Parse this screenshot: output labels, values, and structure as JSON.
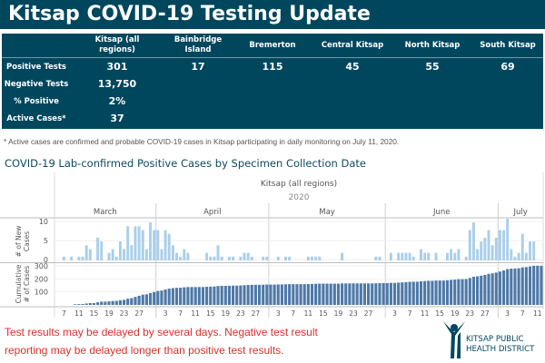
{
  "header": {
    "title": "Kitsap COVID-19 Testing Update"
  },
  "stats_table": {
    "columns": [
      "",
      "Kitsap (all regions)",
      "Bainbridge Island",
      "Bremerton",
      "Central Kitsap",
      "North Kitsap",
      "South Kitsap"
    ],
    "rows": [
      {
        "label": "Positive Tests",
        "values": [
          "301",
          "17",
          "115",
          "45",
          "55",
          "69"
        ]
      },
      {
        "label": "Negative Tests",
        "values": [
          "13,750",
          "",
          "",
          "",
          "",
          ""
        ]
      },
      {
        "label": "% Positive",
        "values": [
          "2%",
          "",
          "",
          "",
          "",
          ""
        ]
      },
      {
        "label": "Active Cases*",
        "values": [
          "37",
          "",
          "",
          "",
          "",
          ""
        ]
      }
    ]
  },
  "footnote": "* Active cases are confirmed and probable COVID-19 cases in Kitsap participating in daily monitoring on July 11, 2020.",
  "note": {
    "line1": "Test results may be delayed by several days. Negative test result",
    "line2": "reporting may be delayed longer than positive test results."
  },
  "logo": {
    "line1": "KITSAP PUBLIC",
    "line2": "HEALTH DISTRICT"
  },
  "colors": {
    "brand": "#00475e",
    "new_cases_bar": "#a9cfea",
    "cumulative_bar": "#4e79a7",
    "warning_text": "#d9312b"
  },
  "chart_data": {
    "type": "bar",
    "title": "COVID-19 Lab-confirmed Positive Cases by Specimen Collection Date",
    "header_label": "Kitsap (all regions)",
    "year_label": "2020",
    "months": [
      "March",
      "April",
      "May",
      "June",
      "July"
    ],
    "x_start": "2020-03-05",
    "x_end": "2020-07-12",
    "x_tick_labels": {
      "March": [
        "7",
        "11",
        "15",
        "19",
        "23",
        "27"
      ],
      "April": [
        "3",
        "7",
        "11",
        "15",
        "19",
        "23",
        "27"
      ],
      "May": [
        "3",
        "7",
        "11",
        "15",
        "19",
        "23",
        "27"
      ],
      "June": [
        "3",
        "7",
        "11",
        "15",
        "19",
        "23",
        "27"
      ],
      "July": [
        "3",
        "7",
        "11"
      ]
    },
    "panels": [
      {
        "name": "new_cases",
        "ylabel": "# of New Cases",
        "yticks": [
          0,
          5,
          10
        ],
        "ylim": [
          0,
          11
        ],
        "series": [
          {
            "date": "2020-03-07",
            "value": 1
          },
          {
            "date": "2020-03-09",
            "value": 1
          },
          {
            "date": "2020-03-11",
            "value": 1
          },
          {
            "date": "2020-03-12",
            "value": 1
          },
          {
            "date": "2020-03-13",
            "value": 4
          },
          {
            "date": "2020-03-14",
            "value": 3
          },
          {
            "date": "2020-03-16",
            "value": 6
          },
          {
            "date": "2020-03-17",
            "value": 5
          },
          {
            "date": "2020-03-19",
            "value": 2
          },
          {
            "date": "2020-03-20",
            "value": 3
          },
          {
            "date": "2020-03-21",
            "value": 1
          },
          {
            "date": "2020-03-22",
            "value": 5
          },
          {
            "date": "2020-03-23",
            "value": 3
          },
          {
            "date": "2020-03-24",
            "value": 9
          },
          {
            "date": "2020-03-25",
            "value": 4
          },
          {
            "date": "2020-03-26",
            "value": 9
          },
          {
            "date": "2020-03-27",
            "value": 9
          },
          {
            "date": "2020-03-28",
            "value": 8
          },
          {
            "date": "2020-03-29",
            "value": 3
          },
          {
            "date": "2020-03-30",
            "value": 10
          },
          {
            "date": "2020-03-31",
            "value": 8
          },
          {
            "date": "2020-04-01",
            "value": 8
          },
          {
            "date": "2020-04-02",
            "value": 3
          },
          {
            "date": "2020-04-03",
            "value": 8
          },
          {
            "date": "2020-04-04",
            "value": 7
          },
          {
            "date": "2020-04-05",
            "value": 4
          },
          {
            "date": "2020-04-06",
            "value": 2
          },
          {
            "date": "2020-04-07",
            "value": 1
          },
          {
            "date": "2020-04-08",
            "value": 3
          },
          {
            "date": "2020-04-09",
            "value": 2
          },
          {
            "date": "2020-04-14",
            "value": 2
          },
          {
            "date": "2020-04-15",
            "value": 1
          },
          {
            "date": "2020-04-16",
            "value": 1
          },
          {
            "date": "2020-04-17",
            "value": 4
          },
          {
            "date": "2020-04-18",
            "value": 1
          },
          {
            "date": "2020-04-20",
            "value": 1
          },
          {
            "date": "2020-04-21",
            "value": 1
          },
          {
            "date": "2020-04-23",
            "value": 1
          },
          {
            "date": "2020-04-24",
            "value": 2
          },
          {
            "date": "2020-04-25",
            "value": 2
          },
          {
            "date": "2020-04-26",
            "value": 1
          },
          {
            "date": "2020-04-29",
            "value": 1
          },
          {
            "date": "2020-04-30",
            "value": 1
          },
          {
            "date": "2020-05-03",
            "value": 1
          },
          {
            "date": "2020-05-05",
            "value": 1
          },
          {
            "date": "2020-05-06",
            "value": 1
          },
          {
            "date": "2020-05-11",
            "value": 1
          },
          {
            "date": "2020-05-12",
            "value": 1
          },
          {
            "date": "2020-05-13",
            "value": 1
          },
          {
            "date": "2020-05-14",
            "value": 1
          },
          {
            "date": "2020-05-20",
            "value": 2
          },
          {
            "date": "2020-05-29",
            "value": 1
          },
          {
            "date": "2020-05-30",
            "value": 1
          },
          {
            "date": "2020-06-02",
            "value": 2
          },
          {
            "date": "2020-06-04",
            "value": 2
          },
          {
            "date": "2020-06-05",
            "value": 2
          },
          {
            "date": "2020-06-06",
            "value": 2
          },
          {
            "date": "2020-06-07",
            "value": 2
          },
          {
            "date": "2020-06-08",
            "value": 1
          },
          {
            "date": "2020-06-10",
            "value": 3
          },
          {
            "date": "2020-06-11",
            "value": 2
          },
          {
            "date": "2020-06-12",
            "value": 2
          },
          {
            "date": "2020-06-14",
            "value": 2
          },
          {
            "date": "2020-06-17",
            "value": 2
          },
          {
            "date": "2020-06-18",
            "value": 3
          },
          {
            "date": "2020-06-19",
            "value": 2
          },
          {
            "date": "2020-06-20",
            "value": 3
          },
          {
            "date": "2020-06-22",
            "value": 1
          },
          {
            "date": "2020-06-23",
            "value": 8
          },
          {
            "date": "2020-06-24",
            "value": 10
          },
          {
            "date": "2020-06-25",
            "value": 3
          },
          {
            "date": "2020-06-26",
            "value": 5
          },
          {
            "date": "2020-06-27",
            "value": 6
          },
          {
            "date": "2020-06-28",
            "value": 8
          },
          {
            "date": "2020-06-29",
            "value": 4
          },
          {
            "date": "2020-06-30",
            "value": 6
          },
          {
            "date": "2020-07-01",
            "value": 8
          },
          {
            "date": "2020-07-02",
            "value": 8
          },
          {
            "date": "2020-07-03",
            "value": 11
          },
          {
            "date": "2020-07-04",
            "value": 3
          },
          {
            "date": "2020-07-05",
            "value": 1
          },
          {
            "date": "2020-07-06",
            "value": 2
          },
          {
            "date": "2020-07-07",
            "value": 7
          },
          {
            "date": "2020-07-08",
            "value": 2
          },
          {
            "date": "2020-07-09",
            "value": 5
          },
          {
            "date": "2020-07-10",
            "value": 5
          }
        ]
      },
      {
        "name": "cumulative_cases",
        "ylabel": "Cumulative # of Cases",
        "yticks": [
          100,
          200,
          300
        ],
        "ylim": [
          0,
          320
        ],
        "note": "Running total of new cases with a baseline of 3 prior cases"
      }
    ]
  }
}
